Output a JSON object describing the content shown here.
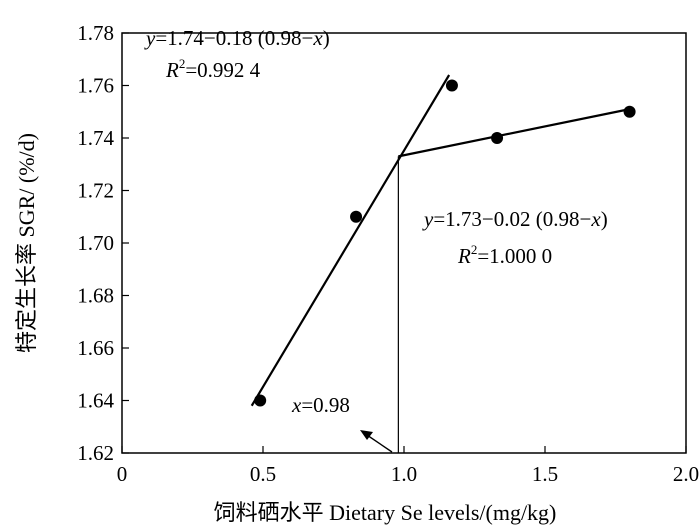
{
  "chart_data": {
    "type": "scatter",
    "title": "",
    "xlabel": "饲料硒水平  Dietary Se levels/(mg/kg)",
    "ylabel": "特定生长率  SGR/ (%/d)",
    "xlim": [
      0,
      2.0
    ],
    "ylim": [
      1.62,
      1.78
    ],
    "x_ticks": [
      0,
      0.5,
      1.0,
      1.5,
      2.0
    ],
    "x_tick_labels": [
      "0",
      "0.5",
      "1.0",
      "1.5",
      "2.0"
    ],
    "y_ticks": [
      1.62,
      1.64,
      1.66,
      1.68,
      1.7,
      1.72,
      1.74,
      1.76,
      1.78
    ],
    "y_tick_labels": [
      "1.62",
      "1.64",
      "1.66",
      "1.68",
      "1.70",
      "1.72",
      "1.74",
      "1.76",
      "1.78"
    ],
    "grid": false,
    "points": [
      {
        "x": 0.49,
        "y": 1.64
      },
      {
        "x": 0.83,
        "y": 1.71
      },
      {
        "x": 1.17,
        "y": 1.76
      },
      {
        "x": 1.33,
        "y": 1.74
      },
      {
        "x": 1.8,
        "y": 1.75
      }
    ],
    "lines": [
      {
        "x": [
          0.46,
          1.16
        ],
        "y": [
          1.638,
          1.764
        ]
      },
      {
        "x": [
          0.98,
          1.8
        ],
        "y": [
          1.733,
          1.751
        ]
      }
    ],
    "breakpoint": {
      "x": 0.98,
      "y": 1.733
    },
    "annotations": {
      "eq1": {
        "prefix": "y",
        "expr": "=1.74−0.18 (0.98−",
        "var": "x",
        "suffix": ")"
      },
      "r2_1": {
        "sym": "R",
        "exp": "2",
        "value": "=0.992 4"
      },
      "eq2": {
        "prefix": "y",
        "expr": "=1.73−0.02 (0.98−",
        "var": "x",
        "suffix": ")"
      },
      "r2_2": {
        "sym": "R",
        "exp": "2",
        "value": "=1.000 0"
      },
      "xmark": {
        "var": "x",
        "value": "=0.98"
      }
    }
  }
}
